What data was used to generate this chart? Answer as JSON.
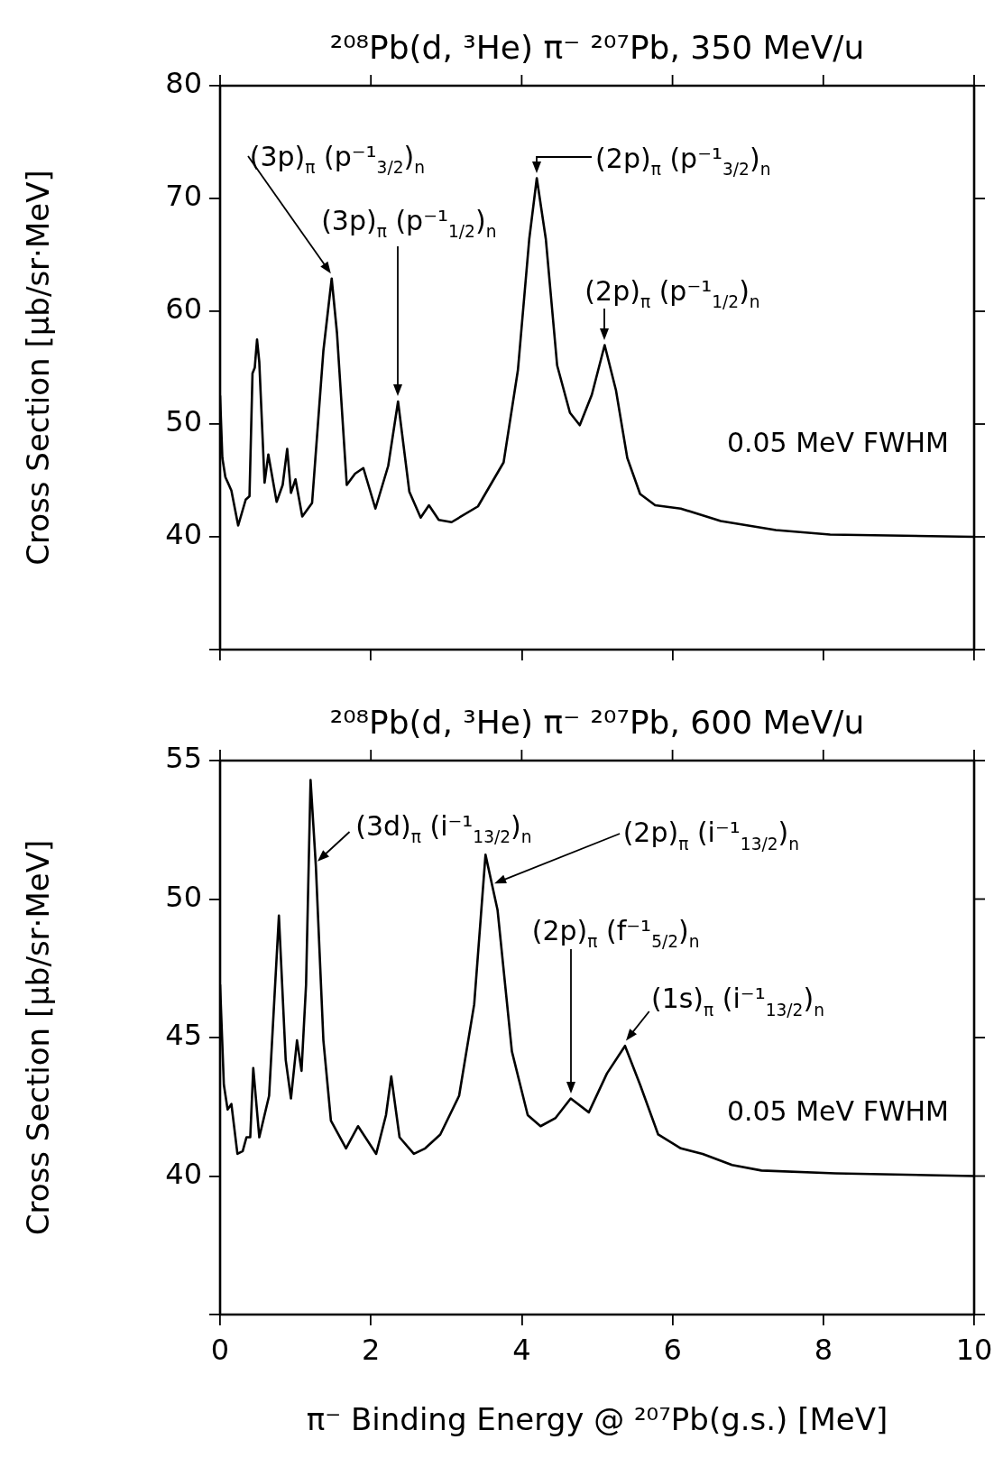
{
  "chart_data": [
    {
      "type": "line",
      "title": "²⁰⁸Pb(d, ³He) π⁻ ²⁰⁷Pb, 350 MeV/u",
      "ylabel": "Cross Section [μb/sr·MeV]",
      "x": [
        0,
        0.03,
        0.07,
        0.15,
        0.24,
        0.34,
        0.39,
        0.43,
        0.46,
        0.49,
        0.52,
        0.59,
        0.64,
        0.75,
        0.83,
        0.89,
        0.94,
        1.0,
        1.09,
        1.22,
        1.37,
        1.48,
        1.55,
        1.68,
        1.79,
        1.9,
        2.06,
        2.23,
        2.36,
        2.51,
        2.66,
        2.77,
        2.9,
        3.07,
        3.42,
        3.76,
        3.95,
        4.1,
        4.2,
        4.32,
        4.47,
        4.64,
        4.77,
        4.93,
        5.1,
        5.25,
        5.4,
        5.57,
        5.77,
        6.11,
        6.64,
        7.37,
        8.09,
        9.06,
        10
      ],
      "series": [
        {
          "color": "#000000",
          "values": [
            52.5,
            47,
            45.3,
            44.1,
            41.0,
            43.3,
            43.6,
            54.5,
            55,
            57.5,
            55.5,
            44.8,
            47.3,
            43.1,
            44.6,
            47.8,
            43.9,
            45.1,
            41.8,
            43.0,
            56.5,
            62.9,
            58.1,
            44.6,
            45.6,
            46.1,
            42.5,
            46.3,
            52.0,
            44.0,
            41.7,
            42.8,
            41.5,
            41.3,
            42.7,
            46.6,
            54.8,
            66.4,
            71.8,
            66.4,
            55.2,
            51.0,
            49.9,
            52.6,
            57.0,
            53.0,
            47.0,
            43.8,
            42.8,
            42.5,
            41.4,
            40.6,
            40.2,
            40.1,
            40.0
          ]
        }
      ],
      "xlim": [
        0,
        10
      ],
      "xticks": [
        0,
        2,
        4,
        6,
        8,
        10
      ],
      "ylim": [
        30,
        80
      ],
      "yticks": [
        {
          "value": 30,
          "label": null
        },
        40,
        50,
        60,
        70,
        80
      ],
      "tick_labels": "y",
      "marker": "none",
      "line_style": "solid",
      "annotations": [
        "(3p)$_{π}$ (p⁻¹$_{3/2}$)$_{n}$",
        "(3p)$_{π}$ (p⁻¹$_{1/2}$)$_{n}$",
        {
          "text": "(2p)$_{π}$ (p⁻¹$_{3/2}$)$_{n}$",
          "x": 4.2,
          "y": 71.8
        },
        {
          "text": "(2p)$_{π}$ (p⁻¹$_{1/2}$)$_{n}$",
          "x": 5.1,
          "y": 57.0
        },
        "0.05 MeV FWHM"
      ]
    },
    {
      "type": "line",
      "title": "²⁰⁸Pb(d, ³He) π⁻ ²⁰⁷Pb, 600 MeV/u",
      "ylabel": "Cross Section [μb/sr·MeV]",
      "xlabel": "π⁻ Binding Energy @ ²⁰⁷Pb(g.s.) [MeV]",
      "x": [
        0,
        0.05,
        0.1,
        0.15,
        0.23,
        0.3,
        0.35,
        0.4,
        0.44,
        0.52,
        0.65,
        0.78,
        0.87,
        0.94,
        1.02,
        1.08,
        1.14,
        1.2,
        1.27,
        1.37,
        1.47,
        1.67,
        1.83,
        2.07,
        2.2,
        2.27,
        2.38,
        2.57,
        2.72,
        2.92,
        3.17,
        3.37,
        3.52,
        3.68,
        3.87,
        4.08,
        4.25,
        4.45,
        4.65,
        4.89,
        5.13,
        5.37,
        5.57,
        5.81,
        6.11,
        6.4,
        6.79,
        7.18,
        8.16,
        10
      ],
      "series": [
        {
          "color": "#000000",
          "values": [
            46.9,
            43.3,
            42.4,
            42.6,
            40.8,
            40.9,
            41.4,
            41.4,
            43.9,
            41.4,
            42.9,
            49.4,
            44.2,
            42.8,
            44.9,
            43.8,
            46.9,
            54.3,
            51.2,
            44.9,
            42.0,
            41.0,
            41.8,
            40.8,
            42.2,
            43.6,
            41.4,
            40.8,
            41.0,
            41.5,
            42.9,
            46.2,
            51.6,
            49.6,
            44.5,
            42.2,
            41.8,
            42.1,
            42.8,
            42.3,
            43.7,
            44.7,
            43.3,
            41.5,
            41.0,
            40.8,
            40.4,
            40.2,
            40.1,
            40.0
          ]
        }
      ],
      "xlim": [
        0,
        10
      ],
      "xticks": [
        0,
        2,
        4,
        6,
        8,
        10
      ],
      "ylim": [
        35,
        55
      ],
      "yticks": [
        {
          "value": 35,
          "label": null
        },
        40,
        45,
        50,
        55
      ],
      "marker": "none",
      "line_style": "solid",
      "annotations": [
        {
          "text": "(3d)$_{π}$ (i⁻¹$_{13/2}$)$_{n}$",
          "x": 1.27,
          "y": 51.2
        },
        "(2p)$_{π}$ (i⁻¹$_{13/2}$)$_{n}$",
        "(2p)$_{π}$ (f⁻¹$_{5/2}$)$_{n}$",
        {
          "text": "(1s)$_{π}$ (i⁻¹$_{13/2}$)$_{n}$",
          "x": 5.37,
          "y": 44.7
        },
        "0.05 MeV FWHM"
      ]
    }
  ]
}
